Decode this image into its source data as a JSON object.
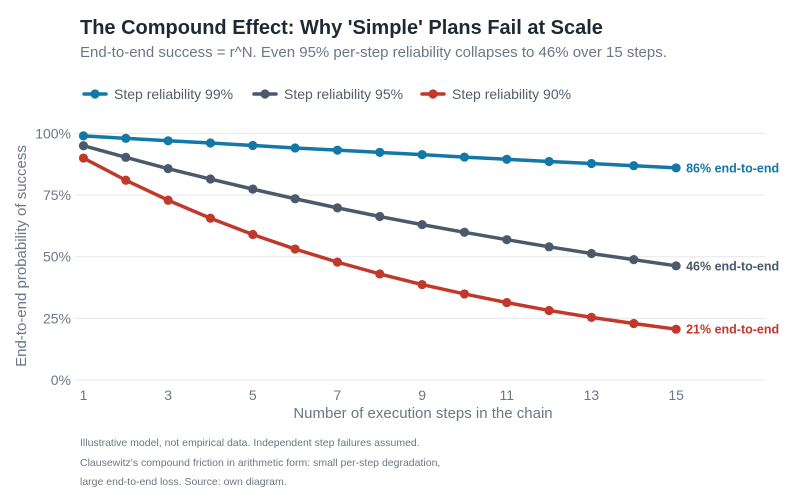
{
  "chart_data": {
    "type": "line",
    "title": "The Compound Effect: Why 'Simple' Plans Fail at Scale",
    "subtitle": "End-to-end success = r^N. Even 95% per-step reliability collapses to 46% over 15 steps.",
    "xlabel": "Number of execution steps in the chain",
    "ylabel": "End-to-end probability of success",
    "x": [
      1,
      2,
      3,
      4,
      5,
      6,
      7,
      8,
      9,
      10,
      11,
      12,
      13,
      14,
      15
    ],
    "x_ticks": [
      1,
      3,
      5,
      7,
      9,
      11,
      13,
      15
    ],
    "xlim": [
      0.8,
      17.1
    ],
    "ylim": [
      0,
      1.03
    ],
    "y_ticks": [
      0,
      0.25,
      0.5,
      0.75,
      1.0
    ],
    "y_tick_labels": [
      "0%",
      "25%",
      "50%",
      "75%",
      "100%"
    ],
    "grid": "horizontal",
    "legend_position": "top-left",
    "series": [
      {
        "name": "Step reliability 99%",
        "color": "#1378a6",
        "values": [
          0.99,
          0.98,
          0.97,
          0.961,
          0.951,
          0.941,
          0.932,
          0.923,
          0.914,
          0.904,
          0.895,
          0.886,
          0.878,
          0.869,
          0.86
        ],
        "end_label": "86% end-to-end"
      },
      {
        "name": "Step reliability 95%",
        "color": "#4a5a6b",
        "values": [
          0.95,
          0.903,
          0.857,
          0.815,
          0.774,
          0.735,
          0.698,
          0.663,
          0.63,
          0.599,
          0.569,
          0.54,
          0.513,
          0.488,
          0.463
        ],
        "end_label": "46% end-to-end"
      },
      {
        "name": "Step reliability 90%",
        "color": "#c0392b",
        "values": [
          0.9,
          0.81,
          0.729,
          0.656,
          0.59,
          0.531,
          0.478,
          0.43,
          0.387,
          0.349,
          0.314,
          0.282,
          0.254,
          0.229,
          0.206
        ],
        "end_label": "21% end-to-end"
      }
    ],
    "notes": [
      "Illustrative model, not empirical data. Independent step failures assumed.",
      "Clausewitz's compound friction in arithmetic form: small per-step degradation,",
      "large end-to-end loss. Source: own diagram."
    ]
  }
}
